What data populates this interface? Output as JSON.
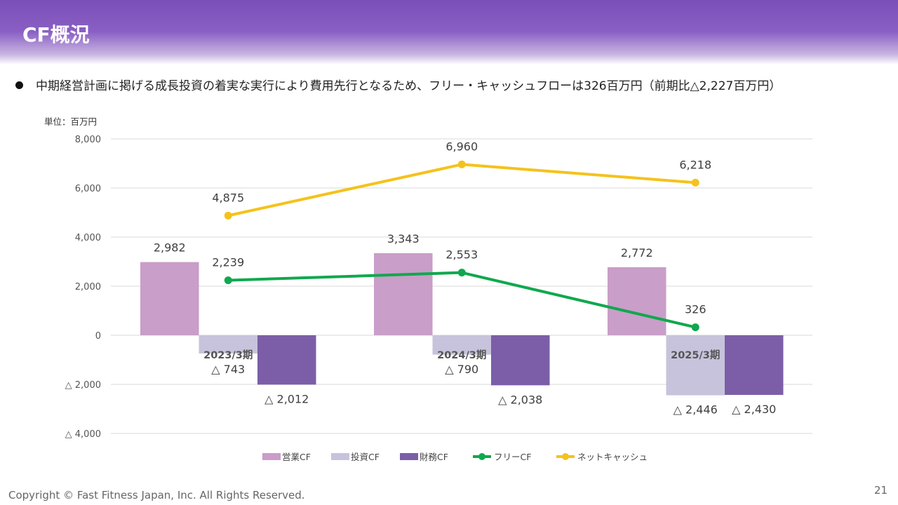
{
  "header": {
    "title": "CF概況"
  },
  "bullet": {
    "text": "中期経営計画に掲げる成長投資の着実な実行により費用先行となるため、フリー・キャッシュフローは326百万円（前期比△2,227百万円）"
  },
  "footer": {
    "copyright": "Copyright © Fast Fitness Japan, Inc. All Rights Reserved.",
    "page_number": "21"
  },
  "chart_data": {
    "type": "bar",
    "unit_label": "単位：百万円",
    "categories": [
      "2023/3期",
      "2024/3期",
      "2025/3期"
    ],
    "ylim": [
      -4000,
      8000
    ],
    "yticks": [
      8000,
      6000,
      4000,
      2000,
      0,
      -2000,
      -4000
    ],
    "ytick_labels": [
      "8,000",
      "6,000",
      "4,000",
      "2,000",
      "0",
      "△ 2,000",
      "△ 4,000"
    ],
    "grid": true,
    "legend_position": "bottom",
    "bar_series": [
      {
        "name": "営業CF",
        "color": "#c99ec8",
        "values": [
          2982,
          3343,
          2772
        ],
        "labels": [
          "2,982",
          "3,343",
          "2,772"
        ]
      },
      {
        "name": "投資CF",
        "color": "#c8c3dc",
        "values": [
          -743,
          -790,
          -2446
        ],
        "labels": [
          "△ 743",
          "△ 790",
          "△ 2,446"
        ]
      },
      {
        "name": "財務CF",
        "color": "#7b5ea7",
        "values": [
          -2012,
          -2038,
          -2430
        ],
        "labels": [
          "△ 2,012",
          "△ 2,038",
          "△ 2,430"
        ]
      }
    ],
    "line_series": [
      {
        "name": "フリーCF",
        "color": "#10a84e",
        "values": [
          2239,
          2553,
          326
        ],
        "labels": [
          "2,239",
          "2,553",
          "326"
        ]
      },
      {
        "name": "ネットキャッシュ",
        "color": "#f5c21b",
        "values": [
          4875,
          6960,
          6218
        ],
        "labels": [
          "4,875",
          "6,960",
          "6,218"
        ]
      }
    ]
  }
}
